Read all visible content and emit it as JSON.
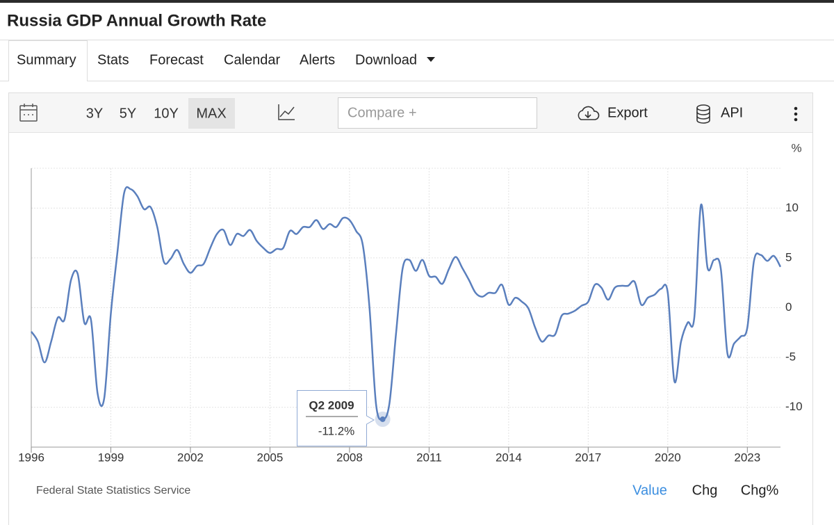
{
  "header": {
    "title": "Russia GDP Annual Growth Rate"
  },
  "tabs": [
    "Summary",
    "Stats",
    "Forecast",
    "Calendar",
    "Alerts",
    "Download"
  ],
  "toolbar": {
    "ranges": [
      "3Y",
      "5Y",
      "10Y",
      "MAX"
    ],
    "compare_placeholder": "Compare +",
    "export": "Export",
    "api": "API"
  },
  "chart_data": {
    "type": "line",
    "y_label": "%",
    "color": "#5a7fbd",
    "grid": true,
    "x": [
      1996,
      1996.25,
      1996.5,
      1996.75,
      1997,
      1997.25,
      1997.5,
      1997.75,
      1998,
      1998.25,
      1998.5,
      1998.75,
      1999,
      1999.25,
      1999.5,
      1999.75,
      2000,
      2000.25,
      2000.5,
      2000.75,
      2001,
      2001.25,
      2001.5,
      2001.75,
      2002,
      2002.25,
      2002.5,
      2002.75,
      2003,
      2003.25,
      2003.5,
      2003.75,
      2004,
      2004.25,
      2004.5,
      2004.75,
      2005,
      2005.25,
      2005.5,
      2005.75,
      2006,
      2006.25,
      2006.5,
      2006.75,
      2007,
      2007.25,
      2007.5,
      2007.75,
      2008,
      2008.25,
      2008.5,
      2008.75,
      2009,
      2009.25,
      2009.5,
      2009.75,
      2010,
      2010.25,
      2010.5,
      2010.75,
      2011,
      2011.25,
      2011.5,
      2011.75,
      2012,
      2012.25,
      2012.5,
      2012.75,
      2013,
      2013.25,
      2013.5,
      2013.75,
      2014,
      2014.25,
      2014.5,
      2014.75,
      2015,
      2015.25,
      2015.5,
      2015.75,
      2016,
      2016.25,
      2016.5,
      2016.75,
      2017,
      2017.25,
      2017.5,
      2017.75,
      2018,
      2018.25,
      2018.5,
      2018.75,
      2019,
      2019.25,
      2019.5,
      2019.75,
      2020,
      2020.25,
      2020.5,
      2020.75,
      2021,
      2021.25,
      2021.5,
      2021.75,
      2022,
      2022.25,
      2022.5,
      2022.75,
      2023,
      2023.25,
      2023.5,
      2023.75,
      2024,
      2024.25
    ],
    "values": [
      -2.4,
      -3.4,
      -5.5,
      -3.4,
      -1.0,
      -1.2,
      2.8,
      3.4,
      -1.5,
      -1.2,
      -8.6,
      -9.1,
      -0.6,
      5.6,
      11.5,
      11.9,
      11.2,
      9.9,
      10.1,
      8.1,
      4.6,
      4.9,
      5.8,
      4.4,
      3.5,
      4.2,
      4.4,
      6.0,
      7.4,
      7.8,
      6.3,
      7.4,
      7.2,
      7.8,
      6.7,
      6.0,
      5.5,
      5.9,
      6.0,
      7.7,
      7.4,
      8.1,
      8.1,
      8.8,
      7.9,
      8.4,
      8.1,
      9.0,
      8.8,
      7.7,
      6.3,
      0.1,
      -9.7,
      -11.2,
      -9.7,
      -2.7,
      3.9,
      4.8,
      3.7,
      4.8,
      3.2,
      3.1,
      2.4,
      3.9,
      5.1,
      4.0,
      2.8,
      1.5,
      1.1,
      1.5,
      1.5,
      2.3,
      0.3,
      1.0,
      0.6,
      -0.1,
      -2.0,
      -3.4,
      -2.8,
      -2.7,
      -0.8,
      -0.6,
      -0.3,
      0.2,
      0.6,
      2.3,
      2.0,
      0.8,
      2.0,
      2.2,
      2.2,
      2.6,
      0.3,
      1.0,
      1.3,
      1.9,
      1.5,
      -7.4,
      -3.4,
      -1.5,
      -1.0,
      10.3,
      4.0,
      4.8,
      3.9,
      -4.6,
      -3.6,
      -2.9,
      -2.0,
      4.7,
      5.3,
      4.7,
      5.2,
      4.1
    ],
    "xlim": [
      1996,
      2024.25
    ],
    "xticks": [
      1996,
      1999,
      2002,
      2005,
      2008,
      2011,
      2014,
      2017,
      2020,
      2023
    ],
    "ylim": [
      -14,
      14
    ],
    "yticks": [
      -10,
      -5,
      0,
      5,
      10
    ],
    "tooltip": {
      "x": 2009.25,
      "label": "Q2 2009",
      "value": -11.2,
      "value_label": "-11.2%"
    }
  },
  "footer": {
    "source": "Federal State Statistics Service",
    "views": [
      "Value",
      "Chg",
      "Chg%"
    ]
  }
}
